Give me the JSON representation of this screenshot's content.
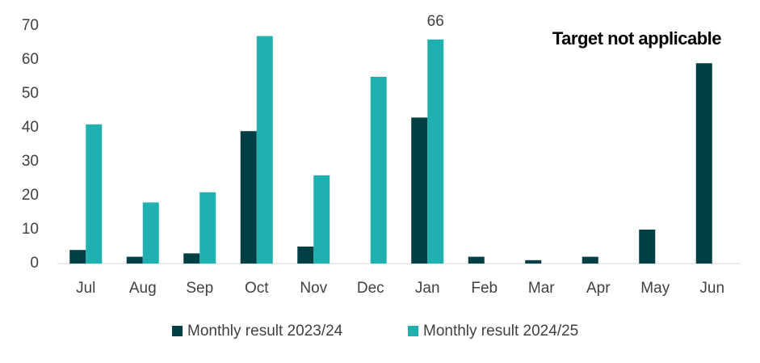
{
  "chart_data": {
    "type": "bar",
    "annotation": "Target not applicable",
    "categories": [
      "Jul",
      "Aug",
      "Sep",
      "Oct",
      "Nov",
      "Dec",
      "Jan",
      "Feb",
      "Mar",
      "Apr",
      "May",
      "Jun"
    ],
    "series": [
      {
        "name": "Monthly result 2023/24",
        "color": "#003f44",
        "values": [
          4,
          2,
          3,
          39,
          5,
          null,
          43,
          2,
          1,
          2,
          10,
          59
        ]
      },
      {
        "name": "Monthly result 2024/25",
        "color": "#20b0b0",
        "values": [
          41,
          18,
          21,
          67,
          26,
          55,
          66,
          null,
          null,
          null,
          null,
          null
        ],
        "value_labels": [
          null,
          null,
          null,
          null,
          null,
          null,
          "66",
          null,
          null,
          null,
          null,
          null
        ]
      }
    ],
    "ylim": [
      0,
      70
    ],
    "yticks": [
      0,
      10,
      20,
      30,
      40,
      50,
      60,
      70
    ],
    "grid": false,
    "legend": "bottom"
  }
}
